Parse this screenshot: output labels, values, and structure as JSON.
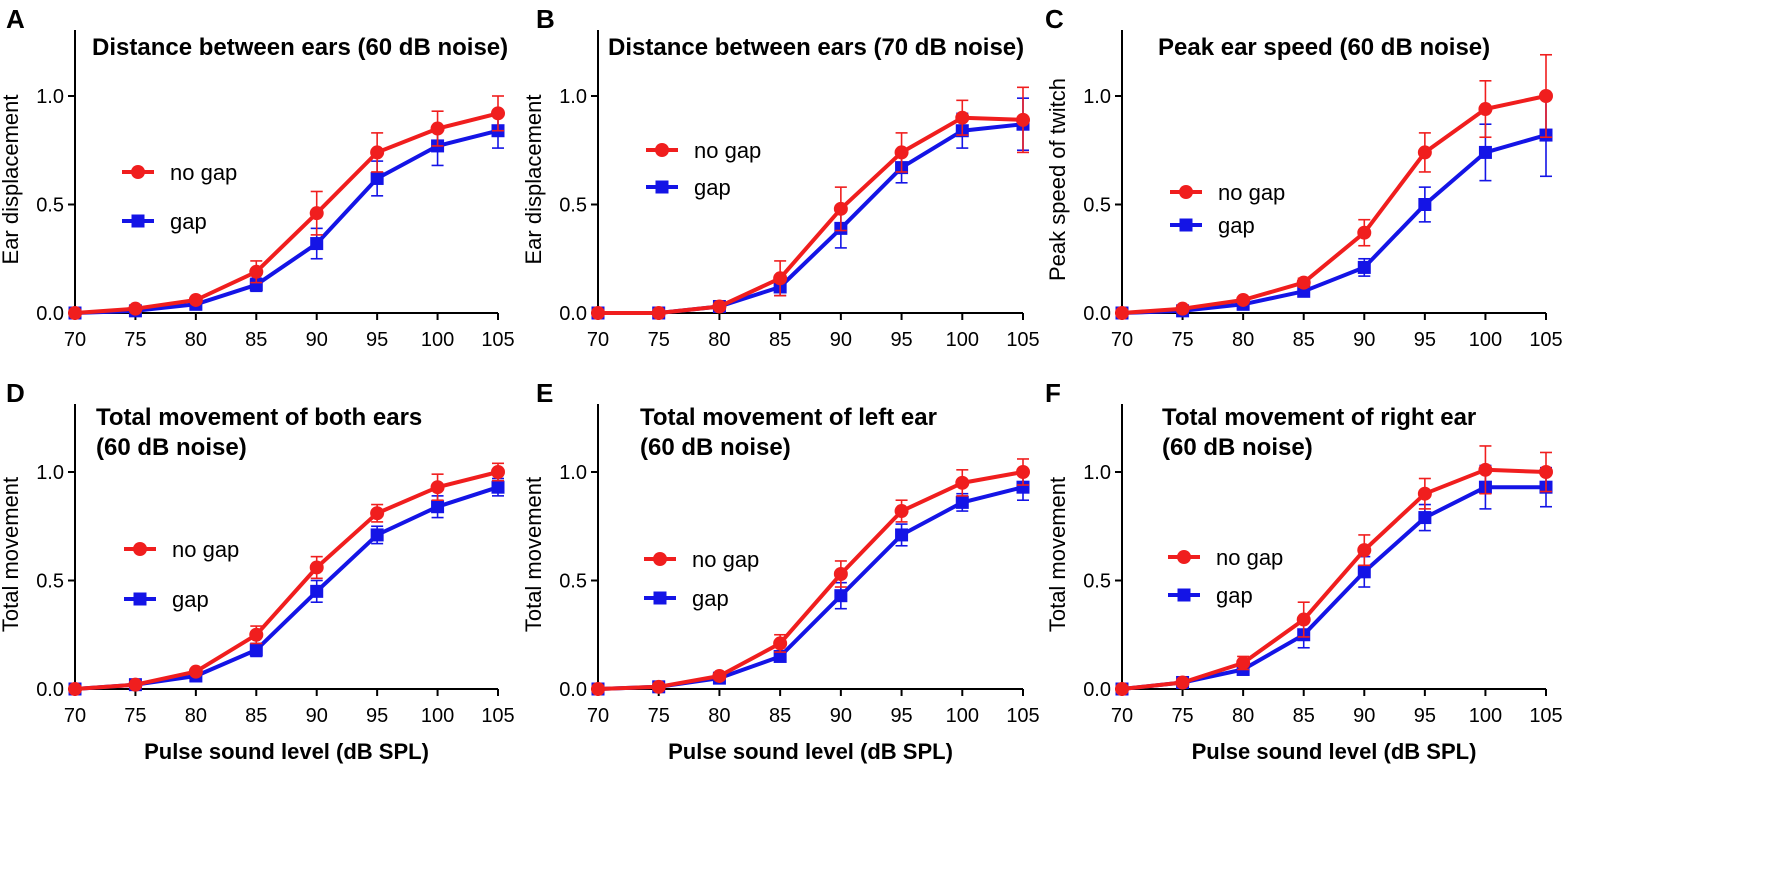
{
  "colors": {
    "no_gap": "#f01e1e",
    "gap": "#1414e6",
    "error_no_gap": "#f01e1e",
    "error_gap": "#1414e6"
  },
  "legend": {
    "no_gap": "no gap",
    "gap": "gap"
  },
  "chart_data": [
    {
      "panel": "A",
      "type": "line",
      "title": [
        "Distance between ears (60 dB noise)"
      ],
      "xlabel": "",
      "ylabel": "Ear displacement",
      "x": [
        70,
        75,
        80,
        85,
        90,
        95,
        100,
        105
      ],
      "x_ticks": [
        "70",
        "75",
        "80",
        "85",
        "90",
        "95",
        "100",
        "105"
      ],
      "y_ticks": [
        "0.0",
        "0.5",
        "1.0"
      ],
      "ylim": [
        0,
        1.3
      ],
      "series": [
        {
          "name": "no gap",
          "values": [
            0.0,
            0.02,
            0.06,
            0.19,
            0.46,
            0.74,
            0.85,
            0.92
          ],
          "errors": [
            0.0,
            0.01,
            0.01,
            0.05,
            0.1,
            0.09,
            0.08,
            0.08
          ]
        },
        {
          "name": "gap",
          "values": [
            0.0,
            0.01,
            0.04,
            0.13,
            0.32,
            0.62,
            0.77,
            0.84
          ],
          "errors": [
            0.0,
            0.01,
            0.01,
            0.03,
            0.07,
            0.08,
            0.09,
            0.08
          ]
        }
      ]
    },
    {
      "panel": "B",
      "type": "line",
      "title": [
        "Distance between ears (70 dB noise)"
      ],
      "xlabel": "",
      "ylabel": "Ear displacement",
      "x": [
        70,
        75,
        80,
        85,
        90,
        95,
        100,
        105
      ],
      "x_ticks": [
        "70",
        "75",
        "80",
        "85",
        "90",
        "95",
        "100",
        "105"
      ],
      "y_ticks": [
        "0.0",
        "0.5",
        "1.0"
      ],
      "ylim": [
        0,
        1.3
      ],
      "series": [
        {
          "name": "no gap",
          "values": [
            0.0,
            0.0,
            0.03,
            0.16,
            0.48,
            0.74,
            0.9,
            0.89
          ],
          "errors": [
            0.0,
            0.0,
            0.01,
            0.08,
            0.1,
            0.09,
            0.08,
            0.15
          ]
        },
        {
          "name": "gap",
          "values": [
            0.0,
            0.0,
            0.03,
            0.12,
            0.39,
            0.67,
            0.84,
            0.87
          ],
          "errors": [
            0.0,
            0.0,
            0.01,
            0.04,
            0.09,
            0.07,
            0.08,
            0.12
          ]
        }
      ]
    },
    {
      "panel": "C",
      "type": "line",
      "title": [
        "Peak ear speed (60 dB noise)"
      ],
      "xlabel": "",
      "ylabel": "Peak speed of twitch",
      "x": [
        70,
        75,
        80,
        85,
        90,
        95,
        100,
        105
      ],
      "x_ticks": [
        "70",
        "75",
        "80",
        "85",
        "90",
        "95",
        "100",
        "105"
      ],
      "y_ticks": [
        "0.0",
        "0.5",
        "1.0"
      ],
      "ylim": [
        0,
        1.3
      ],
      "series": [
        {
          "name": "no gap",
          "values": [
            0.0,
            0.02,
            0.06,
            0.14,
            0.37,
            0.74,
            0.94,
            1.0
          ],
          "errors": [
            0.0,
            0.01,
            0.01,
            0.02,
            0.06,
            0.09,
            0.13,
            0.19
          ]
        },
        {
          "name": "gap",
          "values": [
            0.0,
            0.01,
            0.04,
            0.1,
            0.21,
            0.5,
            0.74,
            0.82
          ],
          "errors": [
            0.0,
            0.01,
            0.01,
            0.01,
            0.04,
            0.08,
            0.13,
            0.19
          ]
        }
      ]
    },
    {
      "panel": "D",
      "type": "line",
      "title": [
        "Total movement of both ears",
        "(60 dB noise)"
      ],
      "xlabel": "Pulse sound level (dB SPL)",
      "ylabel": "Total movement",
      "x": [
        70,
        75,
        80,
        85,
        90,
        95,
        100,
        105
      ],
      "x_ticks": [
        "70",
        "75",
        "80",
        "85",
        "90",
        "95",
        "100",
        "105"
      ],
      "y_ticks": [
        "0.0",
        "0.5",
        "1.0"
      ],
      "ylim": [
        0,
        1.3
      ],
      "series": [
        {
          "name": "no gap",
          "values": [
            0.0,
            0.02,
            0.08,
            0.25,
            0.56,
            0.81,
            0.93,
            1.0
          ],
          "errors": [
            0.0,
            0.01,
            0.01,
            0.04,
            0.05,
            0.04,
            0.06,
            0.04
          ]
        },
        {
          "name": "gap",
          "values": [
            0.0,
            0.02,
            0.06,
            0.18,
            0.45,
            0.71,
            0.84,
            0.93
          ],
          "errors": [
            0.0,
            0.01,
            0.01,
            0.03,
            0.05,
            0.04,
            0.05,
            0.04
          ]
        }
      ]
    },
    {
      "panel": "E",
      "type": "line",
      "title": [
        "Total movement of left ear",
        "(60 dB noise)"
      ],
      "xlabel": "Pulse sound level (dB SPL)",
      "ylabel": "Total movement",
      "x": [
        70,
        75,
        80,
        85,
        90,
        95,
        100,
        105
      ],
      "x_ticks": [
        "70",
        "75",
        "80",
        "85",
        "90",
        "95",
        "100",
        "105"
      ],
      "y_ticks": [
        "0.0",
        "0.5",
        "1.0"
      ],
      "ylim": [
        0,
        1.3
      ],
      "series": [
        {
          "name": "no gap",
          "values": [
            0.0,
            0.01,
            0.06,
            0.21,
            0.53,
            0.82,
            0.95,
            1.0
          ],
          "errors": [
            0.0,
            0.01,
            0.01,
            0.04,
            0.06,
            0.05,
            0.06,
            0.06
          ]
        },
        {
          "name": "gap",
          "values": [
            0.0,
            0.01,
            0.05,
            0.15,
            0.43,
            0.71,
            0.86,
            0.93
          ],
          "errors": [
            0.0,
            0.01,
            0.01,
            0.02,
            0.06,
            0.05,
            0.04,
            0.06
          ]
        }
      ]
    },
    {
      "panel": "F",
      "type": "line",
      "title": [
        "Total movement of right ear",
        "(60 dB noise)"
      ],
      "xlabel": "Pulse sound level (dB SPL)",
      "ylabel": "Total movement",
      "x": [
        70,
        75,
        80,
        85,
        90,
        95,
        100,
        105
      ],
      "x_ticks": [
        "70",
        "75",
        "80",
        "85",
        "90",
        "95",
        "100",
        "105"
      ],
      "y_ticks": [
        "0.0",
        "0.5",
        "1.0"
      ],
      "ylim": [
        0,
        1.3
      ],
      "series": [
        {
          "name": "no gap",
          "values": [
            0.0,
            0.03,
            0.12,
            0.32,
            0.64,
            0.9,
            1.01,
            1.0
          ],
          "errors": [
            0.0,
            0.01,
            0.03,
            0.08,
            0.07,
            0.07,
            0.11,
            0.09
          ]
        },
        {
          "name": "gap",
          "values": [
            0.0,
            0.03,
            0.09,
            0.25,
            0.54,
            0.79,
            0.93,
            0.93
          ],
          "errors": [
            0.0,
            0.01,
            0.02,
            0.06,
            0.07,
            0.06,
            0.1,
            0.09
          ]
        }
      ]
    }
  ]
}
